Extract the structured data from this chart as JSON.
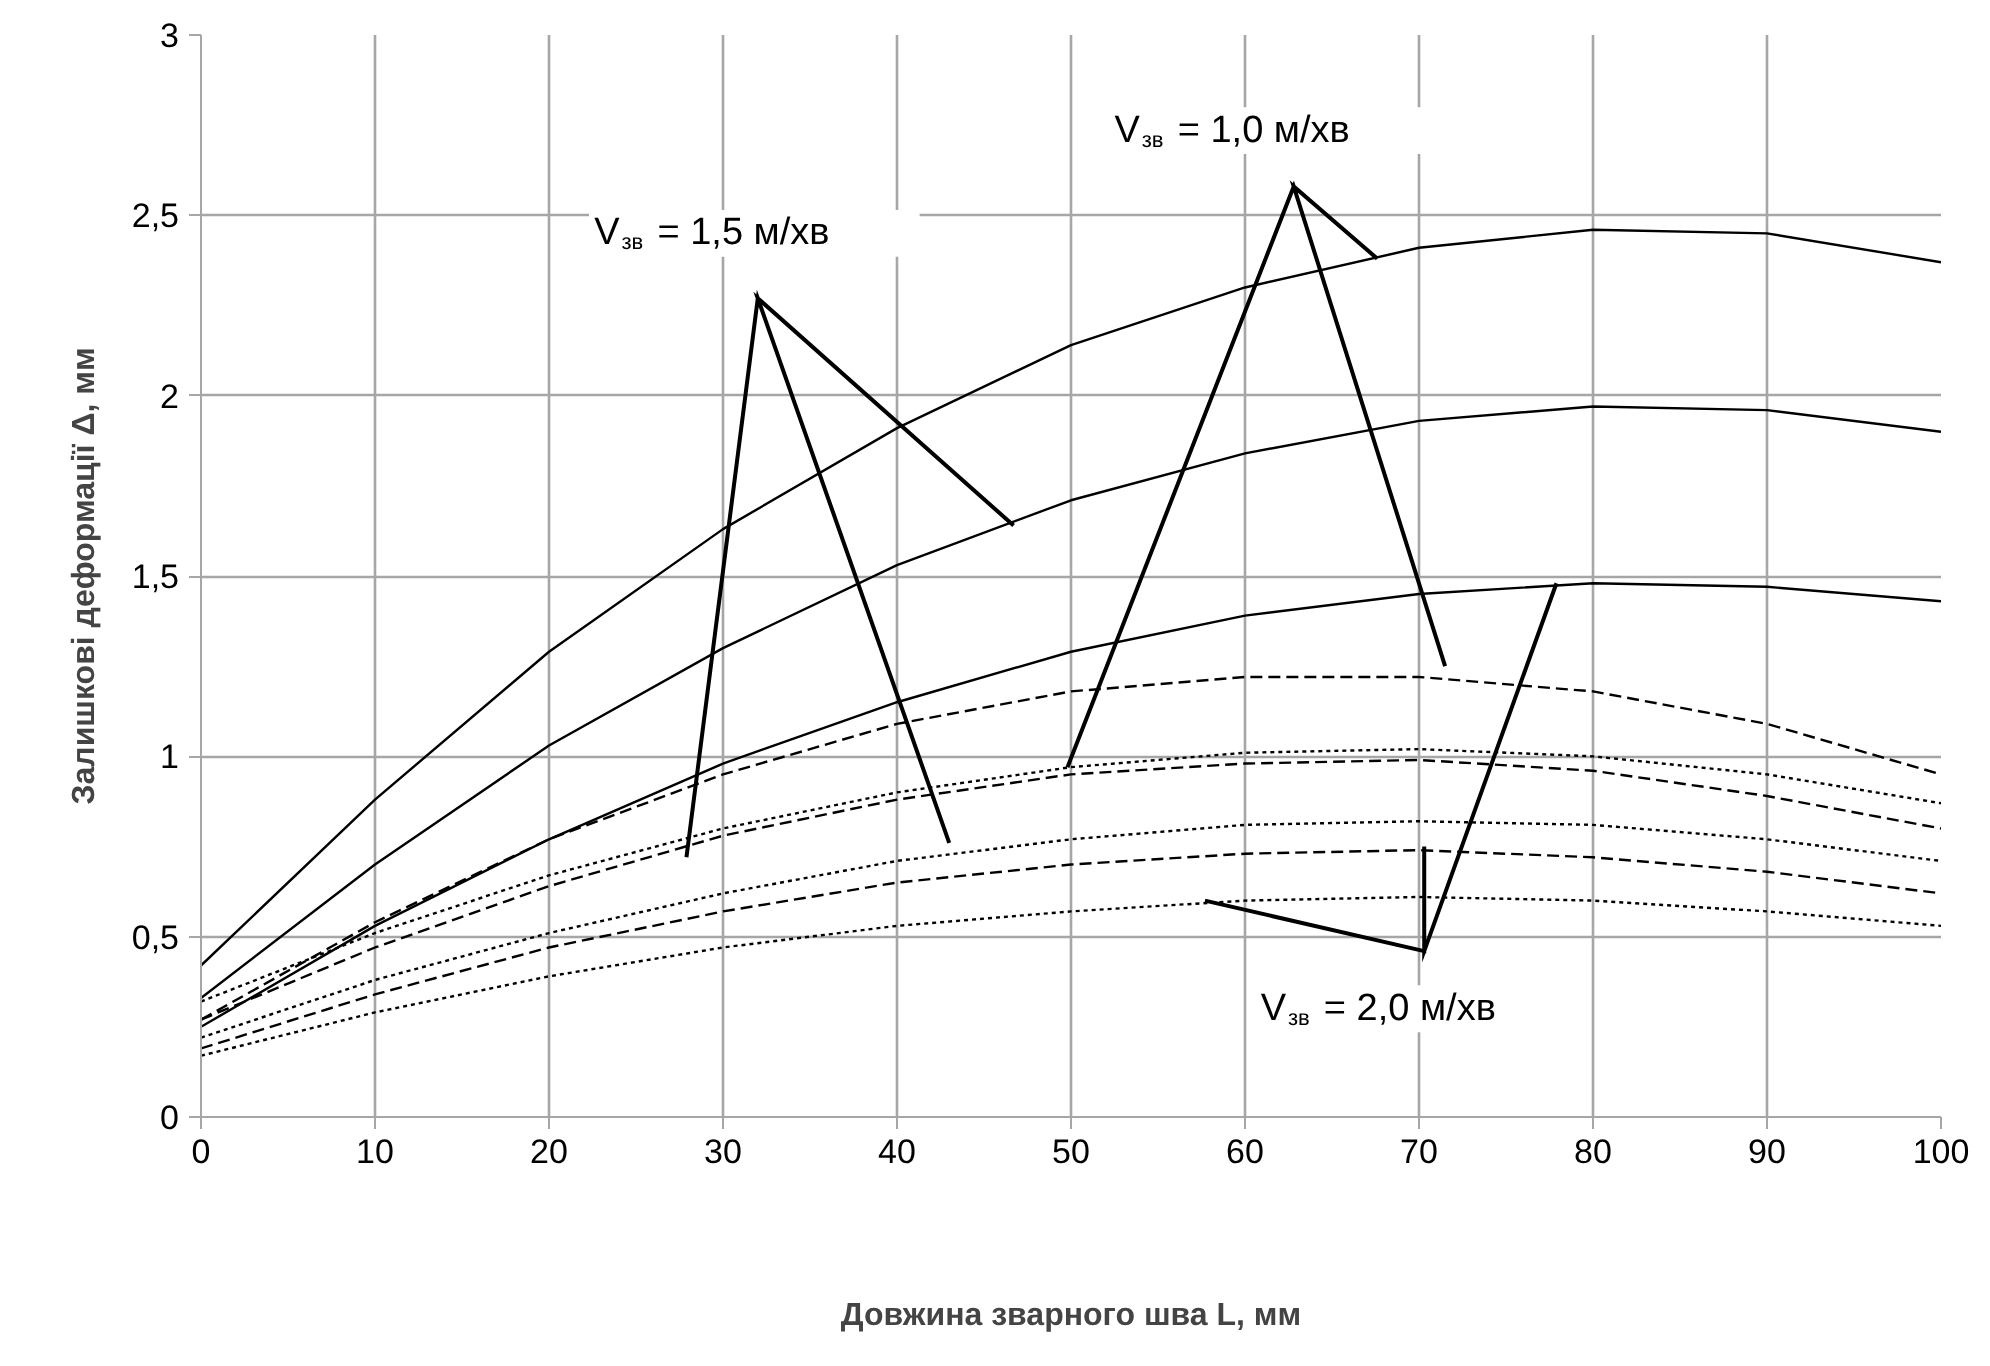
{
  "chart_data": {
    "type": "line",
    "xlabel": "Довжина зварного шва L, мм",
    "ylabel": "Залишкові деформації Δ, мм",
    "x": [
      0,
      10,
      20,
      30,
      40,
      50,
      60,
      70,
      80,
      90,
      100
    ],
    "xlim": [
      0,
      100
    ],
    "xticks": [
      0,
      10,
      20,
      30,
      40,
      50,
      60,
      70,
      80,
      90,
      100
    ],
    "ylim": [
      0,
      3
    ],
    "yticks": [
      0,
      {
        "value": 0.5,
        "label": "0,5"
      },
      1,
      {
        "value": 1.5,
        "label": "1,5"
      },
      2,
      {
        "value": 2.5,
        "label": "2,5"
      },
      3
    ],
    "grid": true,
    "marker": "none",
    "series": [
      {
        "color": "#000000",
        "line_style": "solid",
        "values": [
          0.42,
          0.88,
          1.29,
          1.63,
          1.91,
          2.14,
          2.3,
          2.41,
          2.46,
          2.45,
          2.37
        ]
      },
      {
        "color": "#000000",
        "line_style": "solid",
        "values": [
          0.33,
          0.7,
          1.03,
          1.3,
          1.53,
          1.71,
          1.84,
          1.93,
          1.97,
          1.96,
          1.9
        ]
      },
      {
        "color": "#000000",
        "line_style": "solid",
        "values": [
          0.25,
          0.53,
          0.77,
          0.98,
          1.15,
          1.29,
          1.39,
          1.45,
          1.48,
          1.47,
          1.43
        ]
      },
      {
        "color": "#000000",
        "line_style": "dashed",
        "values": [
          0.27,
          0.54,
          0.77,
          0.95,
          1.09,
          1.18,
          1.22,
          1.22,
          1.18,
          1.09,
          0.95
        ]
      },
      {
        "color": "#000000",
        "line_style": "dotted",
        "values": [
          0.32,
          0.51,
          0.67,
          0.8,
          0.9,
          0.97,
          1.01,
          1.02,
          1.0,
          0.95,
          0.87
        ]
      },
      {
        "color": "#000000",
        "line_style": "dashed",
        "values": [
          0.27,
          0.47,
          0.64,
          0.78,
          0.88,
          0.95,
          0.98,
          0.99,
          0.96,
          0.89,
          0.8
        ]
      },
      {
        "color": "#000000",
        "line_style": "dotted",
        "values": [
          0.22,
          0.38,
          0.51,
          0.62,
          0.71,
          0.77,
          0.81,
          0.82,
          0.81,
          0.77,
          0.71
        ]
      },
      {
        "color": "#000000",
        "line_style": "dashed",
        "values": [
          0.19,
          0.34,
          0.47,
          0.57,
          0.65,
          0.7,
          0.73,
          0.74,
          0.72,
          0.68,
          0.62
        ]
      },
      {
        "color": "#000000",
        "line_style": "dotted",
        "values": [
          0.17,
          0.29,
          0.39,
          0.47,
          0.53,
          0.57,
          0.6,
          0.61,
          0.6,
          0.57,
          0.53
        ]
      }
    ],
    "annotations": [
      {
        "text": "V$_{зв}$ = 1,5 м/хв",
        "x": 46.7,
        "y": 1.64
      },
      {
        "text": "V$_{зв}$ = 1,0 м/хв",
        "x": 67.6,
        "y": 2.38
      },
      {
        "text": "V$_{зв}$ = 2,0 м/хв",
        "x": 77.9,
        "y": 1.48
      }
    ]
  }
}
